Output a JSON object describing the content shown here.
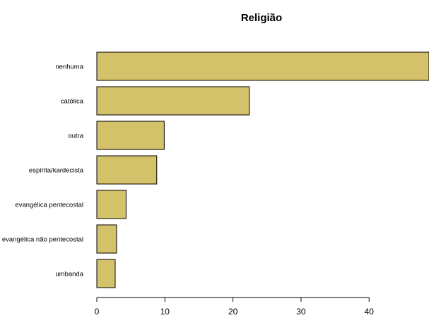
{
  "chart_data": {
    "type": "bar",
    "orientation": "horizontal",
    "title": "Religião",
    "categories": [
      "nenhuma",
      "católica",
      "outra",
      "espírita/kardecista",
      "evangélica pentecostal",
      "evangélica não pentecostal",
      "umbanda"
    ],
    "values": [
      48.8,
      22.4,
      9.9,
      8.8,
      4.3,
      2.9,
      2.7
    ],
    "x_ticks": [
      "0",
      "10",
      "20",
      "30",
      "40"
    ],
    "xlim": [
      0,
      48.8
    ],
    "xlabel": "",
    "ylabel": "",
    "grid": false,
    "bar_color": "#d4c26a",
    "bar_border_color": "#000000"
  }
}
